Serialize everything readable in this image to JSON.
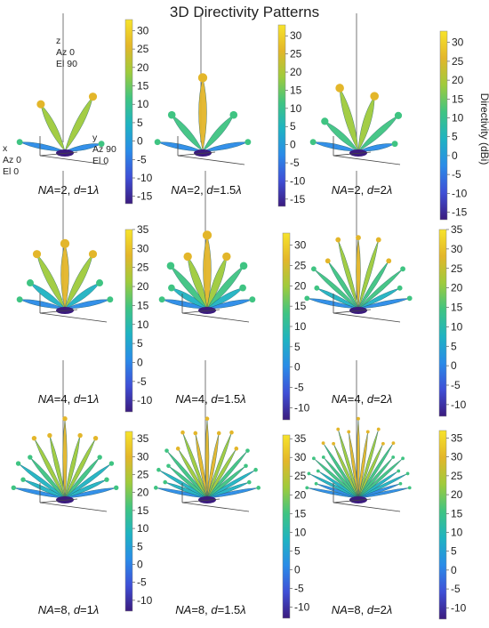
{
  "figure": {
    "title": "3D Directivity Patterns",
    "colorbar_label": "Directivity (dBi)",
    "colormap": [
      "#3b1b7e",
      "#3f4fd6",
      "#2a8be8",
      "#1fb3c2",
      "#3fc482",
      "#9fcb3c",
      "#e3b62a",
      "#f7e32b"
    ],
    "axis_labels": {
      "z": [
        "z",
        "Az 0",
        "El 90"
      ],
      "x": [
        "x",
        "Az 0",
        "El 0"
      ],
      "y": [
        "y",
        "Az 90",
        "El 0"
      ]
    }
  },
  "chart_data": [
    {
      "type": "heatmap",
      "panel": "NA=2, d=1λ",
      "na": "2",
      "d": "1λ",
      "lobes": 4,
      "clim": [
        -17,
        33
      ],
      "colorbar_ticks": [
        30,
        25,
        20,
        15,
        10,
        5,
        0,
        -5,
        -10,
        -15
      ]
    },
    {
      "type": "heatmap",
      "panel": "NA=2, d=1.5λ",
      "na": "2",
      "d": "1.5λ",
      "lobes": 5,
      "clim": [
        -17,
        33
      ],
      "colorbar_ticks": [
        30,
        25,
        20,
        15,
        10,
        5,
        0,
        -5,
        -10,
        -15
      ]
    },
    {
      "type": "heatmap",
      "panel": "NA=2, d=2λ",
      "na": "2",
      "d": "2λ",
      "lobes": 6,
      "clim": [
        -17,
        33
      ],
      "colorbar_ticks": [
        30,
        25,
        20,
        15,
        10,
        5,
        0,
        -5,
        -10,
        -15
      ]
    },
    {
      "type": "heatmap",
      "panel": "NA=4, d=1λ",
      "na": "4",
      "d": "1λ",
      "lobes": 7,
      "clim": [
        -13,
        35
      ],
      "colorbar_ticks": [
        35,
        30,
        25,
        20,
        15,
        10,
        5,
        0,
        -5,
        -10
      ]
    },
    {
      "type": "heatmap",
      "panel": "NA=4, d=1.5λ",
      "na": "4",
      "d": "1.5λ",
      "lobes": 9,
      "clim": [
        -13,
        33
      ],
      "colorbar_ticks": [
        30,
        25,
        20,
        15,
        10,
        5,
        0,
        -5,
        -10
      ]
    },
    {
      "type": "heatmap",
      "panel": "NA=4, d=2λ",
      "na": "4",
      "d": "2λ",
      "lobes": 11,
      "clim": [
        -13,
        35
      ],
      "colorbar_ticks": [
        35,
        30,
        25,
        20,
        15,
        10,
        5,
        0,
        -5,
        -10
      ]
    },
    {
      "type": "heatmap",
      "panel": "NA=8, d=1λ",
      "na": "8",
      "d": "1λ",
      "lobes": 13,
      "clim": [
        -13,
        37
      ],
      "colorbar_ticks": [
        35,
        30,
        25,
        20,
        15,
        10,
        5,
        0,
        -5,
        -10
      ]
    },
    {
      "type": "heatmap",
      "panel": "NA=8, d=1.5λ",
      "na": "8",
      "d": "1.5λ",
      "lobes": 17,
      "clim": [
        -13,
        36
      ],
      "colorbar_ticks": [
        35,
        30,
        25,
        20,
        15,
        10,
        5,
        0,
        -5,
        -10
      ]
    },
    {
      "type": "heatmap",
      "panel": "NA=8, d=2λ",
      "na": "8",
      "d": "2λ",
      "lobes": 21,
      "clim": [
        -13,
        37
      ],
      "colorbar_ticks": [
        35,
        30,
        25,
        20,
        15,
        10,
        5,
        0,
        -5,
        -10
      ]
    }
  ]
}
